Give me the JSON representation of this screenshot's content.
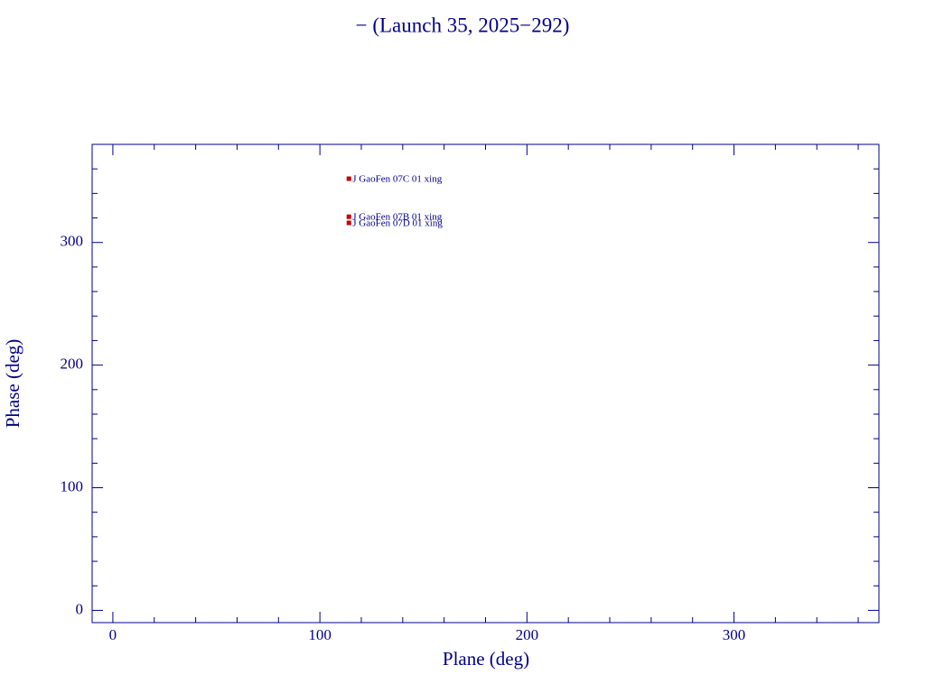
{
  "chart_data": {
    "type": "scatter",
    "title": "− (Launch 35, 2025−292)",
    "x_label": "Plane (deg)",
    "y_label": "Phase (deg)",
    "xlim": [
      -10,
      370
    ],
    "ylim": [
      -10,
      380
    ],
    "xticks": [
      0,
      100,
      200,
      300
    ],
    "yticks": [
      0,
      100,
      200,
      300
    ],
    "xminorticks": [
      20,
      40,
      60,
      80,
      120,
      140,
      160,
      180,
      220,
      240,
      260,
      280,
      320,
      340,
      360
    ],
    "yminorticks": [
      20,
      40,
      60,
      80,
      120,
      140,
      160,
      180,
      220,
      240,
      260,
      280,
      320,
      340,
      360
    ],
    "color": "#cc0000",
    "text_color": "#00008b",
    "x": [
      114,
      114,
      114
    ],
    "values": [
      352,
      321,
      316
    ],
    "point_labels": [
      "J GaoFen 07C 01 xing",
      "J GaoFen 07B 01 xing",
      "J GaoFen 07D 01 xing"
    ]
  }
}
